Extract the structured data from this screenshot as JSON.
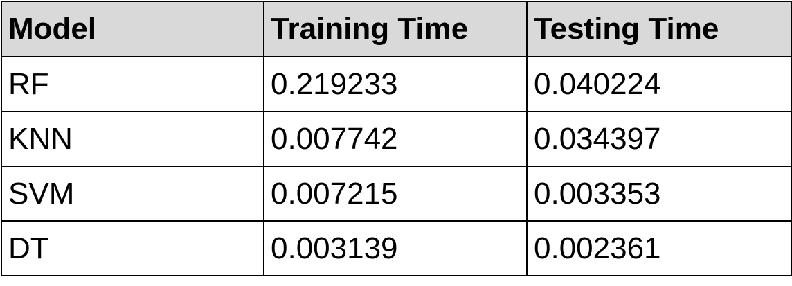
{
  "chart_data": {
    "type": "table",
    "columns": [
      "Model",
      "Training Time",
      "Testing Time"
    ],
    "rows": [
      [
        "RF",
        "0.219233",
        "0.040224"
      ],
      [
        "KNN",
        "0.007742",
        "0.034397"
      ],
      [
        "SVM",
        "0.007215",
        "0.003353"
      ],
      [
        "DT",
        "0.003139",
        "0.002361"
      ]
    ]
  },
  "colors": {
    "header_bg": "#d9d9d9",
    "border": "#000000",
    "text": "#000000"
  }
}
